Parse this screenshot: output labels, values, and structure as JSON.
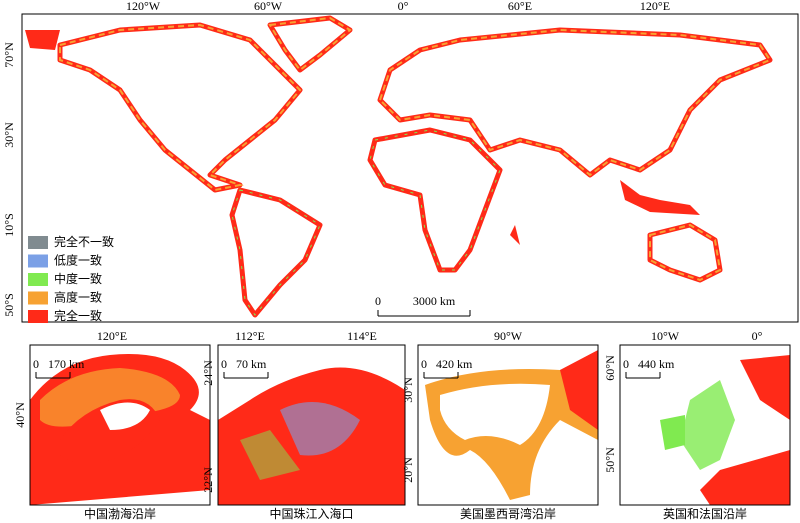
{
  "main_map": {
    "lon_labels": [
      "120°W",
      "60°W",
      "0°",
      "60°E",
      "120°E"
    ],
    "lat_labels": [
      "70°N",
      "30°N",
      "10°S",
      "50°S"
    ],
    "legend": [
      {
        "label": "完全不一致",
        "color": "#808b90"
      },
      {
        "label": "低度一致",
        "color": "#7ba0e6"
      },
      {
        "label": "中度一致",
        "color": "#80ea50"
      },
      {
        "label": "高度一致",
        "color": "#f7a232"
      },
      {
        "label": "完全一致",
        "color": "#ff2a18"
      }
    ],
    "scale_bar": {
      "start": "0",
      "end": "3000 km"
    }
  },
  "insets": [
    {
      "caption": "中国渤海沿岸",
      "lon_labels": [
        "120°E"
      ],
      "lat_labels": [
        "40°N"
      ],
      "scale_bar": {
        "start": "0",
        "end": "170 km"
      }
    },
    {
      "caption": "中国珠江入海口",
      "lon_labels": [
        "112°E",
        "114°E"
      ],
      "lat_labels": [
        "24°N",
        "22°N"
      ],
      "scale_bar": {
        "start": "0",
        "end": "70 km"
      }
    },
    {
      "caption": "美国墨西哥湾沿岸",
      "lon_labels": [
        "90°W"
      ],
      "lat_labels": [
        "30°N",
        "20°N"
      ],
      "scale_bar": {
        "start": "0",
        "end": "420 km"
      }
    },
    {
      "caption": "英国和法国沿岸",
      "lon_labels": [
        "10°W",
        "0°"
      ],
      "lat_labels": [
        "60°N",
        "50°N"
      ],
      "scale_bar": {
        "start": "0",
        "end": "440 km"
      }
    }
  ]
}
